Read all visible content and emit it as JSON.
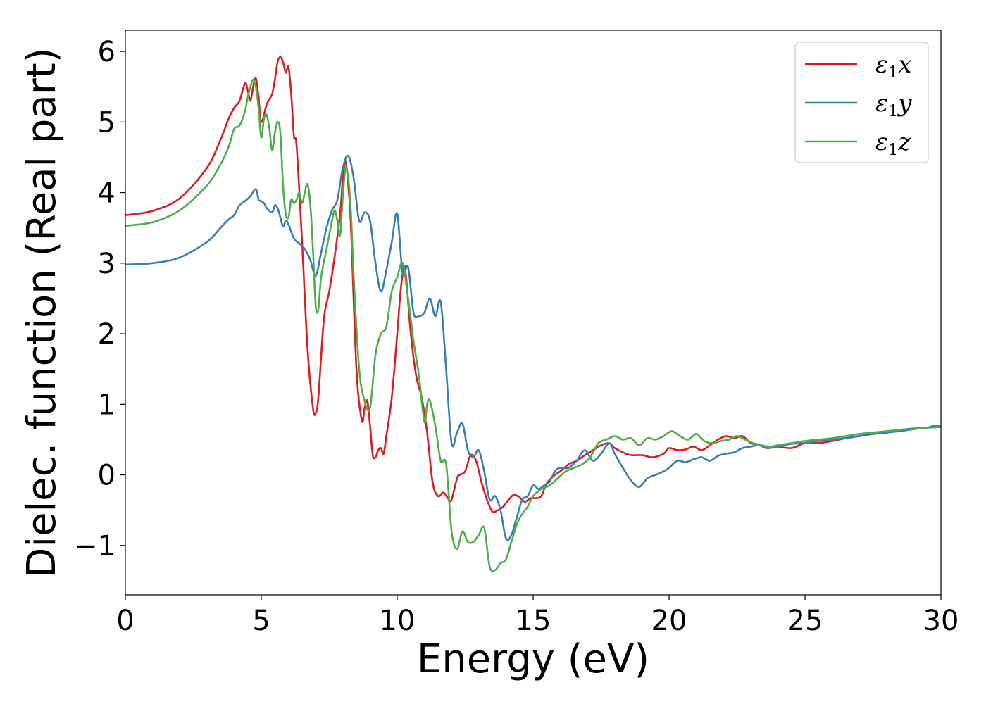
{
  "chart_data": {
    "type": "line",
    "title": "",
    "xlabel": "Energy (eV)",
    "ylabel": "Dielec. function (Real part)",
    "xlim": [
      0,
      30
    ],
    "ylim": [
      -1.7,
      6.3
    ],
    "xticks": [
      0,
      5,
      10,
      15,
      20,
      25,
      30
    ],
    "xtick_labels": [
      "0",
      "5",
      "10",
      "15",
      "20",
      "25",
      "30"
    ],
    "yticks": [
      -1,
      0,
      1,
      2,
      3,
      4,
      5,
      6
    ],
    "ytick_labels": [
      "−1",
      "0",
      "1",
      "2",
      "3",
      "4",
      "5",
      "6"
    ],
    "grid": false,
    "legend_position": "top-right",
    "series": [
      {
        "name": "ε1x",
        "legend_main": "ε",
        "legend_sub": "1",
        "legend_var": "x",
        "color": "#e41a1c",
        "x": [
          0,
          1,
          2,
          3,
          3.5,
          3.8,
          4.0,
          4.2,
          4.4,
          4.5,
          4.6,
          4.7,
          4.8,
          4.9,
          5.0,
          5.2,
          5.4,
          5.5,
          5.6,
          5.7,
          5.8,
          5.9,
          6.0,
          6.1,
          6.2,
          6.3,
          6.5,
          6.7,
          6.9,
          7.0,
          7.1,
          7.3,
          7.5,
          7.7,
          7.9,
          8.0,
          8.1,
          8.2,
          8.3,
          8.5,
          8.7,
          8.8,
          8.9,
          9.0,
          9.1,
          9.2,
          9.3,
          9.4,
          9.5,
          9.6,
          9.8,
          10.0,
          10.1,
          10.2,
          10.3,
          10.5,
          10.7,
          10.9,
          11.1,
          11.3,
          11.5,
          11.7,
          11.9,
          12.0,
          12.2,
          12.3,
          12.5,
          12.7,
          12.9,
          13.1,
          13.3,
          13.5,
          13.7,
          13.9,
          14.1,
          14.3,
          14.5,
          14.7,
          14.9,
          15.1,
          15.3,
          15.5,
          15.8,
          16.0,
          16.3,
          16.6,
          16.9,
          17.2,
          17.5,
          17.8,
          18.0,
          18.3,
          18.6,
          19.0,
          19.4,
          19.8,
          20.0,
          20.3,
          20.6,
          20.9,
          21.2,
          21.5,
          21.8,
          22.1,
          22.4,
          22.7,
          23.0,
          23.3,
          23.6,
          24.0,
          24.5,
          25.0,
          25.5,
          26.0,
          26.5,
          27.0,
          27.5,
          28.0,
          28.5,
          29.0,
          29.5,
          30.0
        ],
        "y": [
          3.68,
          3.74,
          3.92,
          4.35,
          4.75,
          5.05,
          5.2,
          5.3,
          5.55,
          5.45,
          5.3,
          5.5,
          5.62,
          5.35,
          5.0,
          5.25,
          5.4,
          5.6,
          5.85,
          5.92,
          5.85,
          5.7,
          5.78,
          5.4,
          4.8,
          4.65,
          3.3,
          1.8,
          0.95,
          0.88,
          1.1,
          2.2,
          2.6,
          3.1,
          3.7,
          4.2,
          4.45,
          4.1,
          3.5,
          1.5,
          0.77,
          0.95,
          1.05,
          0.7,
          0.28,
          0.25,
          0.35,
          0.38,
          0.3,
          0.55,
          1.1,
          2.0,
          2.5,
          2.85,
          2.9,
          2.0,
          1.4,
          1.1,
          0.6,
          -0.1,
          -0.3,
          -0.25,
          -0.35,
          -0.35,
          -0.05,
          0.0,
          0.05,
          0.28,
          0.2,
          -0.1,
          -0.35,
          -0.52,
          -0.5,
          -0.45,
          -0.35,
          -0.28,
          -0.32,
          -0.38,
          -0.33,
          -0.33,
          -0.3,
          -0.12,
          0.0,
          0.05,
          0.15,
          0.2,
          0.28,
          0.35,
          0.42,
          0.45,
          0.38,
          0.32,
          0.28,
          0.28,
          0.25,
          0.3,
          0.38,
          0.35,
          0.36,
          0.4,
          0.35,
          0.42,
          0.5,
          0.55,
          0.52,
          0.55,
          0.45,
          0.43,
          0.38,
          0.4,
          0.38,
          0.45,
          0.45,
          0.48,
          0.52,
          0.55,
          0.58,
          0.6,
          0.63,
          0.65,
          0.67,
          0.68
        ]
      },
      {
        "name": "ε1y",
        "legend_main": "ε",
        "legend_sub": "1",
        "legend_var": "y",
        "color": "#377eb8",
        "x": [
          0,
          1,
          2,
          3,
          3.5,
          3.8,
          4.0,
          4.2,
          4.4,
          4.6,
          4.8,
          4.9,
          5.0,
          5.1,
          5.2,
          5.4,
          5.5,
          5.6,
          5.7,
          5.8,
          5.9,
          6.0,
          6.2,
          6.4,
          6.6,
          6.8,
          7.0,
          7.2,
          7.4,
          7.6,
          7.8,
          8.0,
          8.2,
          8.4,
          8.6,
          8.8,
          9.0,
          9.2,
          9.4,
          9.6,
          9.8,
          10.0,
          10.2,
          10.4,
          10.6,
          10.8,
          11.0,
          11.2,
          11.4,
          11.6,
          11.8,
          12.0,
          12.2,
          12.4,
          12.6,
          12.8,
          13.0,
          13.2,
          13.4,
          13.6,
          13.8,
          14.0,
          14.2,
          14.4,
          14.6,
          14.8,
          15.0,
          15.2,
          15.4,
          15.6,
          15.8,
          16.0,
          16.3,
          16.6,
          16.9,
          17.2,
          17.5,
          17.8,
          18.0,
          18.3,
          18.6,
          18.9,
          19.2,
          19.5,
          19.8,
          20.0,
          20.3,
          20.6,
          20.9,
          21.2,
          21.5,
          21.8,
          22.1,
          22.4,
          22.7,
          23.0,
          23.3,
          23.6,
          24.0,
          24.5,
          25.0,
          25.5,
          26.0,
          26.5,
          27.0,
          27.5,
          28.0,
          28.5,
          29.0,
          29.5,
          29.8,
          30.0
        ],
        "y": [
          2.98,
          3.0,
          3.08,
          3.3,
          3.5,
          3.62,
          3.68,
          3.82,
          3.88,
          3.95,
          4.05,
          3.9,
          3.88,
          3.85,
          3.78,
          3.72,
          3.82,
          3.78,
          3.65,
          3.52,
          3.6,
          3.55,
          3.35,
          3.28,
          3.2,
          3.05,
          2.82,
          3.15,
          3.5,
          3.75,
          3.9,
          4.35,
          4.52,
          4.2,
          3.6,
          3.72,
          3.6,
          3.0,
          2.6,
          2.9,
          3.3,
          3.7,
          2.85,
          2.95,
          2.3,
          2.25,
          2.3,
          2.5,
          2.25,
          2.45,
          1.5,
          0.45,
          0.6,
          0.73,
          0.35,
          0.25,
          0.35,
          0.05,
          -0.35,
          -0.3,
          -0.5,
          -0.9,
          -0.85,
          -0.6,
          -0.35,
          -0.3,
          -0.15,
          -0.2,
          -0.15,
          -0.1,
          0.05,
          0.1,
          0.1,
          0.2,
          0.35,
          0.2,
          0.3,
          0.45,
          0.3,
          0.1,
          -0.08,
          -0.17,
          -0.05,
          0.0,
          0.05,
          0.1,
          0.2,
          0.18,
          0.22,
          0.25,
          0.2,
          0.27,
          0.3,
          0.32,
          0.38,
          0.4,
          0.42,
          0.38,
          0.4,
          0.44,
          0.45,
          0.48,
          0.5,
          0.52,
          0.55,
          0.58,
          0.6,
          0.62,
          0.65,
          0.67,
          0.7,
          0.68
        ]
      },
      {
        "name": "ε1z",
        "legend_main": "ε",
        "legend_sub": "1",
        "legend_var": "z",
        "color": "#4daf4a",
        "x": [
          0,
          1,
          2,
          3,
          3.5,
          3.8,
          4.0,
          4.2,
          4.4,
          4.5,
          4.6,
          4.7,
          4.8,
          4.9,
          5.0,
          5.1,
          5.2,
          5.3,
          5.4,
          5.5,
          5.6,
          5.7,
          5.8,
          5.9,
          6.0,
          6.1,
          6.2,
          6.3,
          6.4,
          6.5,
          6.6,
          6.7,
          6.8,
          6.9,
          7.0,
          7.1,
          7.2,
          7.4,
          7.6,
          7.7,
          7.8,
          7.9,
          8.0,
          8.1,
          8.2,
          8.3,
          8.4,
          8.6,
          8.8,
          9.0,
          9.2,
          9.4,
          9.6,
          9.8,
          10.0,
          10.2,
          10.4,
          10.6,
          10.8,
          11.0,
          11.1,
          11.2,
          11.4,
          11.6,
          11.8,
          12.0,
          12.2,
          12.4,
          12.6,
          12.8,
          13.0,
          13.2,
          13.4,
          13.6,
          13.8,
          14.0,
          14.2,
          14.4,
          14.6,
          14.8,
          15.0,
          15.3,
          15.6,
          15.9,
          16.2,
          16.5,
          16.8,
          17.1,
          17.4,
          17.7,
          18.0,
          18.3,
          18.6,
          18.9,
          19.2,
          19.5,
          19.8,
          20.1,
          20.4,
          20.7,
          21.0,
          21.3,
          21.6,
          21.9,
          22.2,
          22.5,
          22.8,
          23.1,
          23.4,
          23.7,
          24.0,
          24.5,
          25.0,
          25.5,
          26.0,
          26.5,
          27.0,
          27.5,
          28.0,
          28.5,
          29.0,
          29.5,
          30.0
        ],
        "y": [
          3.53,
          3.58,
          3.75,
          4.1,
          4.4,
          4.65,
          4.9,
          4.95,
          5.15,
          5.35,
          5.5,
          5.6,
          5.5,
          5.2,
          4.78,
          5.05,
          5.1,
          4.9,
          4.6,
          4.85,
          5.0,
          4.85,
          4.1,
          3.7,
          3.65,
          3.9,
          3.85,
          3.9,
          4.0,
          3.85,
          4.0,
          4.12,
          3.85,
          3.2,
          2.4,
          2.35,
          2.8,
          3.2,
          3.6,
          3.75,
          3.6,
          3.4,
          3.95,
          4.35,
          4.2,
          3.7,
          2.8,
          1.5,
          1.05,
          0.95,
          1.7,
          2.0,
          2.1,
          2.6,
          2.8,
          3.0,
          2.5,
          1.9,
          1.4,
          0.75,
          1.0,
          1.05,
          0.7,
          0.2,
          0.15,
          -0.8,
          -1.05,
          -0.8,
          -0.95,
          -0.95,
          -0.85,
          -0.75,
          -1.3,
          -1.35,
          -1.25,
          -1.2,
          -0.95,
          -0.7,
          -0.55,
          -0.45,
          -0.3,
          -0.2,
          -0.15,
          -0.05,
          0.05,
          0.1,
          0.15,
          0.25,
          0.45,
          0.5,
          0.55,
          0.5,
          0.52,
          0.42,
          0.52,
          0.5,
          0.55,
          0.62,
          0.55,
          0.5,
          0.58,
          0.48,
          0.45,
          0.48,
          0.5,
          0.55,
          0.5,
          0.45,
          0.42,
          0.4,
          0.42,
          0.45,
          0.48,
          0.5,
          0.52,
          0.55,
          0.58,
          0.6,
          0.62,
          0.64,
          0.66,
          0.67,
          0.68
        ]
      }
    ]
  }
}
